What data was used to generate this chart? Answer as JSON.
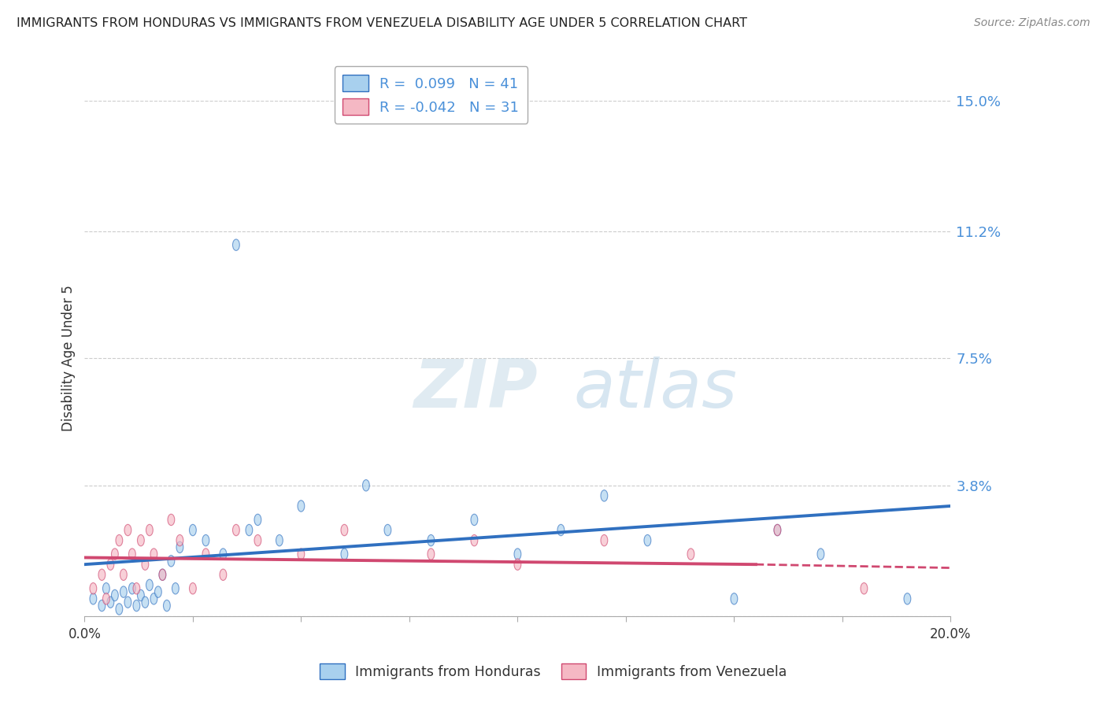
{
  "title": "IMMIGRANTS FROM HONDURAS VS IMMIGRANTS FROM VENEZUELA DISABILITY AGE UNDER 5 CORRELATION CHART",
  "source": "Source: ZipAtlas.com",
  "ylabel": "Disability Age Under 5",
  "legend_honduras": "Immigrants from Honduras",
  "legend_venezuela": "Immigrants from Venezuela",
  "r_honduras": 0.099,
  "n_honduras": 41,
  "r_venezuela": -0.042,
  "n_venezuela": 31,
  "xlim": [
    0.0,
    0.2
  ],
  "ylim": [
    0.0,
    0.15
  ],
  "yticks": [
    0.0,
    0.038,
    0.075,
    0.112,
    0.15
  ],
  "ytick_labels": [
    "",
    "3.8%",
    "7.5%",
    "11.2%",
    "15.0%"
  ],
  "xticks": [
    0.0,
    0.025,
    0.05,
    0.075,
    0.1,
    0.125,
    0.15,
    0.175,
    0.2
  ],
  "xtick_labels": [
    "0.0%",
    "",
    "",
    "",
    "",
    "",
    "",
    "",
    "20.0%"
  ],
  "color_honduras": "#a8d0ee",
  "color_venezuela": "#f5b8c4",
  "line_color_honduras": "#3070c0",
  "line_color_venezuela": "#d04870",
  "background_color": "#ffffff",
  "honduras_x": [
    0.002,
    0.004,
    0.005,
    0.006,
    0.007,
    0.008,
    0.009,
    0.01,
    0.011,
    0.012,
    0.013,
    0.014,
    0.015,
    0.016,
    0.017,
    0.018,
    0.019,
    0.02,
    0.021,
    0.022,
    0.025,
    0.028,
    0.032,
    0.035,
    0.038,
    0.04,
    0.045,
    0.05,
    0.06,
    0.065,
    0.07,
    0.08,
    0.09,
    0.1,
    0.11,
    0.12,
    0.13,
    0.15,
    0.16,
    0.17,
    0.19
  ],
  "honduras_y": [
    0.005,
    0.003,
    0.008,
    0.004,
    0.006,
    0.002,
    0.007,
    0.004,
    0.008,
    0.003,
    0.006,
    0.004,
    0.009,
    0.005,
    0.007,
    0.012,
    0.003,
    0.016,
    0.008,
    0.02,
    0.025,
    0.022,
    0.018,
    0.108,
    0.025,
    0.028,
    0.022,
    0.032,
    0.018,
    0.038,
    0.025,
    0.022,
    0.028,
    0.018,
    0.025,
    0.035,
    0.022,
    0.005,
    0.025,
    0.018,
    0.005
  ],
  "venezuela_x": [
    0.002,
    0.004,
    0.005,
    0.006,
    0.007,
    0.008,
    0.009,
    0.01,
    0.011,
    0.012,
    0.013,
    0.014,
    0.015,
    0.016,
    0.018,
    0.02,
    0.022,
    0.025,
    0.028,
    0.032,
    0.035,
    0.04,
    0.05,
    0.06,
    0.08,
    0.09,
    0.1,
    0.12,
    0.14,
    0.16,
    0.18
  ],
  "venezuela_y": [
    0.008,
    0.012,
    0.005,
    0.015,
    0.018,
    0.022,
    0.012,
    0.025,
    0.018,
    0.008,
    0.022,
    0.015,
    0.025,
    0.018,
    0.012,
    0.028,
    0.022,
    0.008,
    0.018,
    0.012,
    0.025,
    0.022,
    0.018,
    0.025,
    0.018,
    0.022,
    0.015,
    0.022,
    0.018,
    0.025,
    0.008
  ]
}
